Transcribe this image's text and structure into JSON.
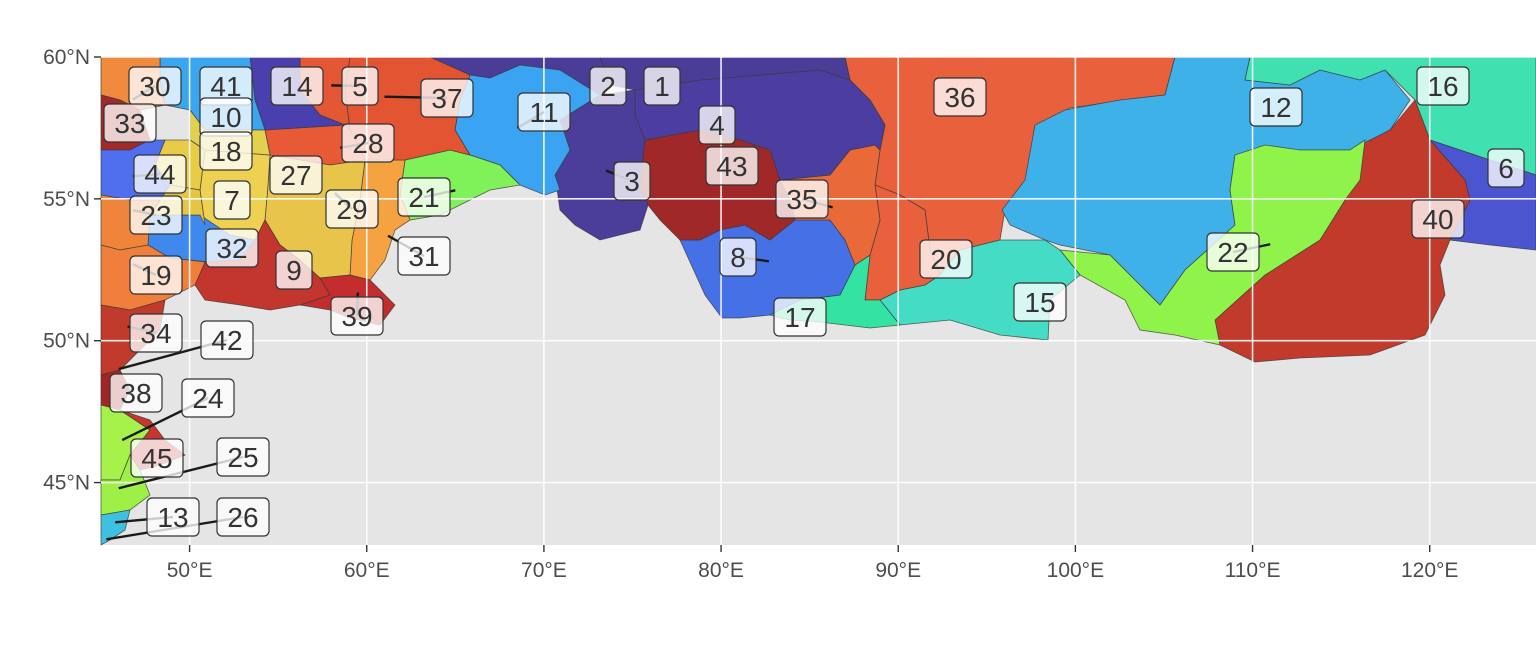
{
  "map": {
    "panel_background": "#e5e5e5",
    "grid_color": "#ffffff",
    "x_ticks": [
      {
        "lon": 50,
        "label": "50°E"
      },
      {
        "lon": 60,
        "label": "60°E"
      },
      {
        "lon": 70,
        "label": "70°E"
      },
      {
        "lon": 80,
        "label": "80°E"
      },
      {
        "lon": 90,
        "label": "90°E"
      },
      {
        "lon": 100,
        "label": "100°E"
      },
      {
        "lon": 110,
        "label": "110°E"
      },
      {
        "lon": 120,
        "label": "120°E"
      }
    ],
    "y_ticks": [
      {
        "lat": 60,
        "label": "60°N"
      },
      {
        "lat": 55,
        "label": "55°N"
      },
      {
        "lat": 50,
        "label": "50°N"
      },
      {
        "lat": 45,
        "label": "45°N"
      }
    ],
    "extent": {
      "lon": [
        45,
        126
      ],
      "lat": [
        42.8,
        60
      ]
    },
    "regions": [
      {
        "id": "36",
        "color": "#e8603c",
        "lon": 94.3,
        "lat": 58.5
      },
      {
        "id": "12",
        "color": "#3eb1e8",
        "lon": 111.5,
        "lat": 58.1
      },
      {
        "id": "16",
        "color": "#40e0b0",
        "lon": 120.5,
        "lat": 58.8
      },
      {
        "id": "6",
        "color": "#4a55cf",
        "lon": 125.3,
        "lat": 55.8
      },
      {
        "id": "40",
        "color": "#c23a2c",
        "lon": 119.3,
        "lat": 54.2
      },
      {
        "id": "22",
        "color": "#90f34a",
        "lon": 111.0,
        "lat": 53.4
      },
      {
        "id": "15",
        "color": "#44dcc4",
        "lon": 97.5,
        "lat": 51.7
      },
      {
        "id": "20",
        "color": "#e8603c",
        "lon": 92.5,
        "lat": 53.0
      },
      {
        "id": "17",
        "color": "#33e3a2",
        "lon": 84.5,
        "lat": 51.1
      },
      {
        "id": "8",
        "color": "#4670e6",
        "lon": 82.7,
        "lat": 52.8
      },
      {
        "id": "35",
        "color": "#e96a38",
        "lon": 86.3,
        "lat": 54.7
      },
      {
        "id": "43",
        "color": "#a12828",
        "lon": 81.0,
        "lat": 55.7
      },
      {
        "id": "4",
        "color": "#4b3ea0",
        "lon": 80.2,
        "lat": 57.5
      },
      {
        "id": "3",
        "color": "#4b3d9a",
        "lon": 73.5,
        "lat": 56.0
      },
      {
        "id": "1",
        "color": "#4a3d98",
        "lon": 77.0,
        "lat": 59.2
      },
      {
        "id": "2",
        "color": "#4a3d98",
        "lon": 73.5,
        "lat": 59.2
      },
      {
        "id": "11",
        "color": "#3aa3f2",
        "lon": 68.5,
        "lat": 57.5
      },
      {
        "id": "21",
        "color": "#7ef258",
        "lon": 65.0,
        "lat": 55.3
      },
      {
        "id": "31",
        "color": "#f4a340",
        "lon": 61.2,
        "lat": 53.7
      },
      {
        "id": "37",
        "color": "#e35432",
        "lon": 61.0,
        "lat": 58.6
      },
      {
        "id": "28",
        "color": "#e85a36",
        "lon": 58.5,
        "lat": 56.8
      },
      {
        "id": "5",
        "color": "#e45735",
        "lon": 58.0,
        "lat": 59.0
      },
      {
        "id": "14",
        "color": "#4a3fae",
        "lon": 55.8,
        "lat": 58.6
      },
      {
        "id": "29",
        "color": "#e8c54a",
        "lon": 58.2,
        "lat": 55.2
      },
      {
        "id": "27",
        "color": "#eed053",
        "lon": 54.8,
        "lat": 55.7
      },
      {
        "id": "9",
        "color": "#c3362e",
        "lon": 55.2,
        "lat": 52.6
      },
      {
        "id": "39",
        "color": "#c32d2d",
        "lon": 59.5,
        "lat": 51.7
      },
      {
        "id": "32",
        "color": "#3f88ee",
        "lon": 52.3,
        "lat": 53.5
      },
      {
        "id": "41",
        "color": "#3ba6f0",
        "lon": 51.5,
        "lat": 58.7
      },
      {
        "id": "10",
        "color": "#e3d04e",
        "lon": 51.5,
        "lat": 57.6
      },
      {
        "id": "18",
        "color": "#e8cc48",
        "lon": 51.5,
        "lat": 56.4
      },
      {
        "id": "7",
        "color": "#e6c444",
        "lon": 51.5,
        "lat": 55.1
      },
      {
        "id": "30",
        "color": "#f08a3c",
        "lon": 46.8,
        "lat": 58.5
      },
      {
        "id": "33",
        "color": "#a22a2a",
        "lon": 46.8,
        "lat": 57.3
      },
      {
        "id": "44",
        "color": "#4f6fee",
        "lon": 46.8,
        "lat": 55.8
      },
      {
        "id": "23",
        "color": "#f0843a",
        "lon": 46.8,
        "lat": 54.6
      },
      {
        "id": "19",
        "color": "#f07f3c",
        "lon": 46.8,
        "lat": 52.7
      },
      {
        "id": "34",
        "color": "#c23a2c",
        "lon": 46.5,
        "lat": 50.5
      },
      {
        "id": "42",
        "color": "#b83232",
        "lon": 46.0,
        "lat": 49.0
      },
      {
        "id": "38",
        "color": "#a12727",
        "lon": 46.0,
        "lat": 47.9
      },
      {
        "id": "24",
        "color": "#a7f24a",
        "lon": 46.2,
        "lat": 46.5
      },
      {
        "id": "45",
        "color": "#c8352f",
        "lon": 47.5,
        "lat": 46.0
      },
      {
        "id": "25",
        "color": "#9ef047",
        "lon": 46.0,
        "lat": 44.8
      },
      {
        "id": "13",
        "color": "#3ec1e0",
        "lon": 45.8,
        "lat": 43.6
      },
      {
        "id": "26",
        "color": "#40b0d8",
        "lon": 45.3,
        "lat": 43.0
      }
    ]
  }
}
